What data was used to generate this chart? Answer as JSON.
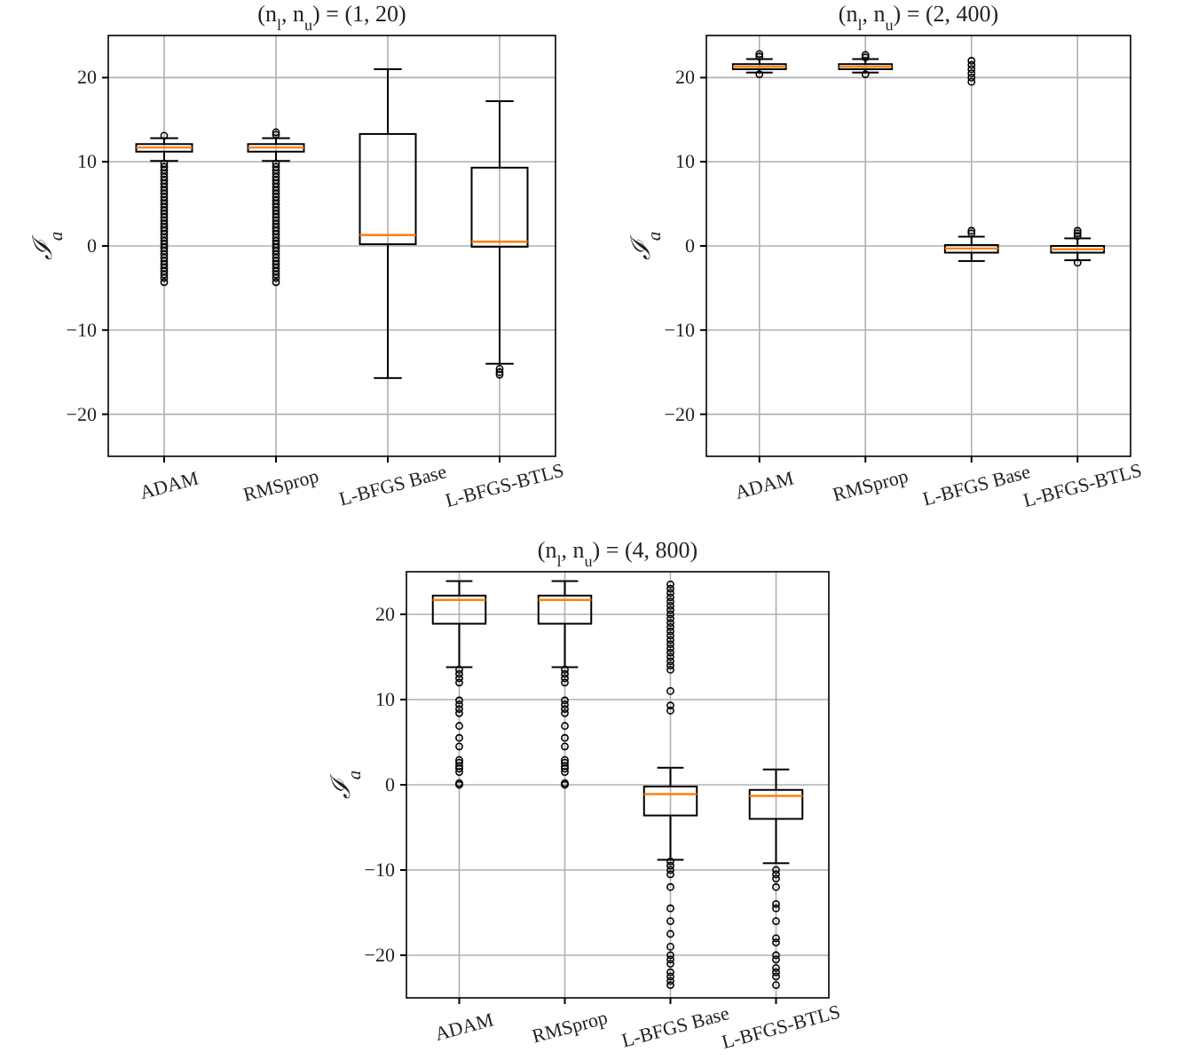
{
  "chart_data": [
    {
      "type": "box",
      "title": "(n$_{l}$, n$_{u}$) = (1, 20)",
      "ylabel": "ℐ$_{a}$",
      "categories": [
        "ADAM",
        "RMSprop",
        "L-BFGS Base",
        "L-BFGS-BTLS"
      ],
      "ylim": [
        -25,
        25
      ],
      "yticks": [
        -20,
        -10,
        0,
        10,
        20
      ],
      "grid": true,
      "boxes": [
        {
          "low": 10.1,
          "q1": 11.2,
          "median": 11.7,
          "q3": 12.1,
          "high": 12.8,
          "outliers": [
            13.1,
            9.8,
            9.4,
            9,
            8.6,
            8.2,
            7.8,
            7.4,
            7,
            6.6,
            6.2,
            5.8,
            5.4,
            5,
            4.6,
            4.2,
            3.8,
            3.4,
            3,
            2.6,
            2.2,
            1.8,
            1.4,
            1,
            0.6,
            0.2,
            -0.2,
            -0.6,
            -1,
            -1.4,
            -1.8,
            -2.2,
            -2.6,
            -3,
            -3.4,
            -3.8,
            -4.3
          ]
        },
        {
          "low": 10.1,
          "q1": 11.2,
          "median": 11.7,
          "q3": 12.1,
          "high": 12.8,
          "outliers": [
            13.2,
            13.5,
            9.8,
            9.4,
            9,
            8.6,
            8.2,
            7.8,
            7.4,
            7,
            6.6,
            6.2,
            5.8,
            5.4,
            5,
            4.6,
            4.2,
            3.8,
            3.4,
            3,
            2.6,
            2.2,
            1.8,
            1.4,
            1,
            0.6,
            0.2,
            -0.2,
            -0.6,
            -1,
            -1.4,
            -1.8,
            -2.2,
            -2.6,
            -3,
            -3.4,
            -3.8,
            -4.3
          ]
        },
        {
          "low": -15.7,
          "q1": 0.2,
          "median": 1.3,
          "q3": 13.3,
          "high": 21
        },
        {
          "low": -14,
          "q1": -0.1,
          "median": 0.5,
          "q3": 9.3,
          "high": 17.2,
          "outliers": [
            -14.6,
            -15,
            -15.3
          ]
        }
      ]
    },
    {
      "type": "box",
      "title": "(n$_{l}$, n$_{u}$) = (2, 400)",
      "ylabel": "ℐ$_{a}$",
      "categories": [
        "ADAM",
        "RMSprop",
        "L-BFGS Base",
        "L-BFGS-BTLS"
      ],
      "ylim": [
        -25,
        25
      ],
      "yticks": [
        -20,
        -10,
        0,
        10,
        20
      ],
      "grid": true,
      "boxes": [
        {
          "low": 20.6,
          "q1": 21,
          "median": 21.3,
          "q3": 21.6,
          "high": 22.2,
          "outliers": [
            22.5,
            22.8,
            20.4
          ]
        },
        {
          "low": 20.6,
          "q1": 21,
          "median": 21.3,
          "q3": 21.6,
          "high": 22.2,
          "outliers": [
            22.4,
            22.7,
            20.4
          ]
        },
        {
          "low": -1.8,
          "q1": -0.8,
          "median": -0.3,
          "q3": 0.1,
          "high": 1.1,
          "outliers": [
            1.5,
            1.8,
            19.5,
            20,
            20.5,
            21,
            21.5,
            22
          ]
        },
        {
          "low": -1.7,
          "q1": -0.8,
          "median": -0.4,
          "q3": 0,
          "high": 0.9,
          "outliers": [
            1.2,
            1.5,
            1.8,
            -2
          ]
        }
      ]
    },
    {
      "type": "box",
      "title": "(n$_{l}$, n$_{u}$) = (4, 800)",
      "ylabel": "ℐ$_{a}$",
      "categories": [
        "ADAM",
        "RMSprop",
        "L-BFGS Base",
        "L-BFGS-BTLS"
      ],
      "ylim": [
        -25,
        25
      ],
      "yticks": [
        -20,
        -10,
        0,
        10,
        20
      ],
      "grid": true,
      "boxes": [
        {
          "low": 13.8,
          "q1": 18.9,
          "median": 21.7,
          "q3": 22.2,
          "high": 23.9,
          "outliers": [
            13.5,
            13,
            12.5,
            12,
            9.9,
            9.4,
            8.9,
            8.4,
            6.9,
            5.5,
            4.5,
            2.9,
            2.6,
            2.2,
            1.9,
            1.5,
            0.2,
            0
          ]
        },
        {
          "low": 13.8,
          "q1": 18.9,
          "median": 21.7,
          "q3": 22.2,
          "high": 23.9,
          "outliers": [
            13.5,
            13,
            12.5,
            12,
            9.9,
            9.4,
            8.9,
            8.4,
            6.9,
            5.5,
            4.5,
            2.9,
            2.6,
            2.2,
            1.9,
            1.5,
            0.2,
            0
          ]
        },
        {
          "low": -8.8,
          "q1": -3.6,
          "median": -1.1,
          "q3": -0.2,
          "high": 2,
          "outliers": [
            23.5,
            23,
            22.5,
            22,
            21.5,
            21,
            20.5,
            20,
            19.5,
            19,
            18.5,
            18,
            17.5,
            17,
            16.5,
            16,
            15.5,
            15,
            14.5,
            14,
            13.5,
            11,
            9.3,
            8.7,
            -9,
            -9.5,
            -10,
            -10.5,
            -12,
            -14.5,
            -16,
            -17.5,
            -19,
            -20,
            -20.5,
            -21,
            -22,
            -22.5,
            -23,
            -23.5
          ]
        },
        {
          "low": -9.2,
          "q1": -4,
          "median": -1.3,
          "q3": -0.6,
          "high": 1.8,
          "outliers": [
            -10,
            -10.5,
            -11,
            -12,
            -14,
            -14.5,
            -16,
            -18,
            -18.5,
            -20,
            -20.5,
            -21.5,
            -22,
            -22.5,
            -23.5
          ]
        }
      ]
    }
  ]
}
